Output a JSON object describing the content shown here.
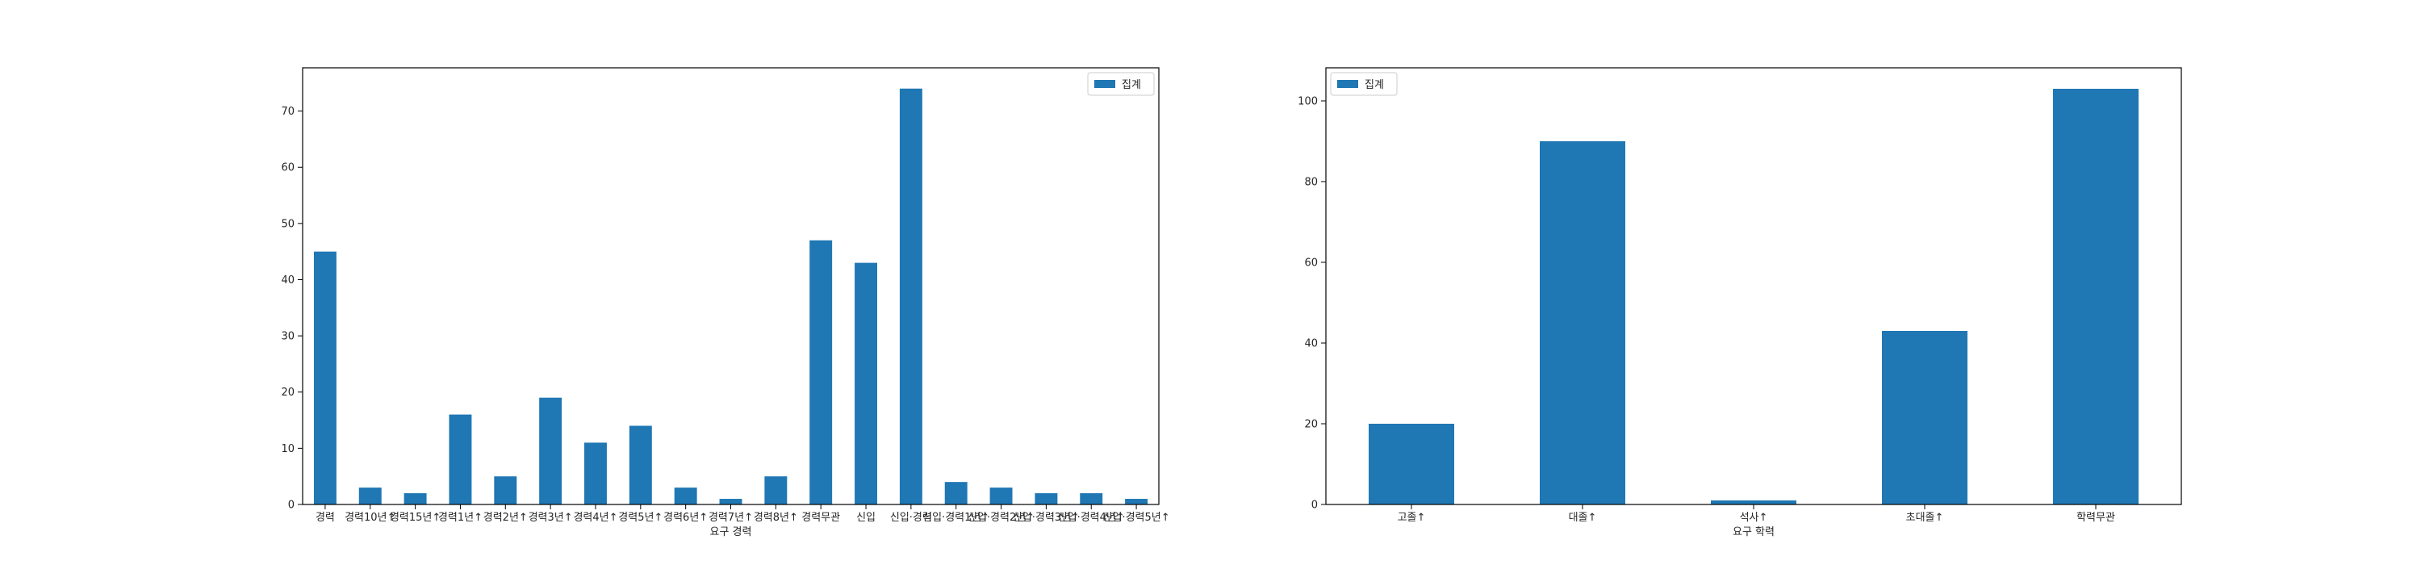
{
  "chart_data": [
    {
      "type": "bar",
      "xlabel": "요구 경력",
      "ylabel": "",
      "categories": [
        "경력",
        "경력10년↑",
        "경력15년↑",
        "경력1년↑",
        "경력2년↑",
        "경력3년↑",
        "경력4년↑",
        "경력5년↑",
        "경력6년↑",
        "경력7년↑",
        "경력8년↑",
        "경력무관",
        "신입",
        "신입·경력",
        "신입·경력1년↑",
        "신입·경력2년↑",
        "신입·경력3년↑",
        "신입·경력4년↑",
        "신입·경력5년↑"
      ],
      "series": [
        {
          "name": "집계",
          "values": [
            45,
            3,
            2,
            16,
            5,
            19,
            11,
            14,
            3,
            1,
            5,
            47,
            43,
            74,
            4,
            3,
            2,
            2,
            1
          ]
        }
      ],
      "ylim": [
        0,
        77.7
      ],
      "yticks": [
        0,
        10,
        20,
        30,
        40,
        50,
        60,
        70
      ],
      "legend_position": "top-right",
      "grid": false,
      "color": "#1f77b4"
    },
    {
      "type": "bar",
      "xlabel": "요구 학력",
      "ylabel": "",
      "categories": [
        "고졸↑",
        "대졸↑",
        "석사↑",
        "초대졸↑",
        "학력무관"
      ],
      "series": [
        {
          "name": "집계",
          "values": [
            20,
            90,
            1,
            43,
            103
          ]
        }
      ],
      "ylim": [
        0,
        108.2
      ],
      "yticks": [
        0,
        20,
        40,
        60,
        80,
        100
      ],
      "legend_position": "top-left",
      "grid": false,
      "color": "#1f77b4"
    }
  ]
}
